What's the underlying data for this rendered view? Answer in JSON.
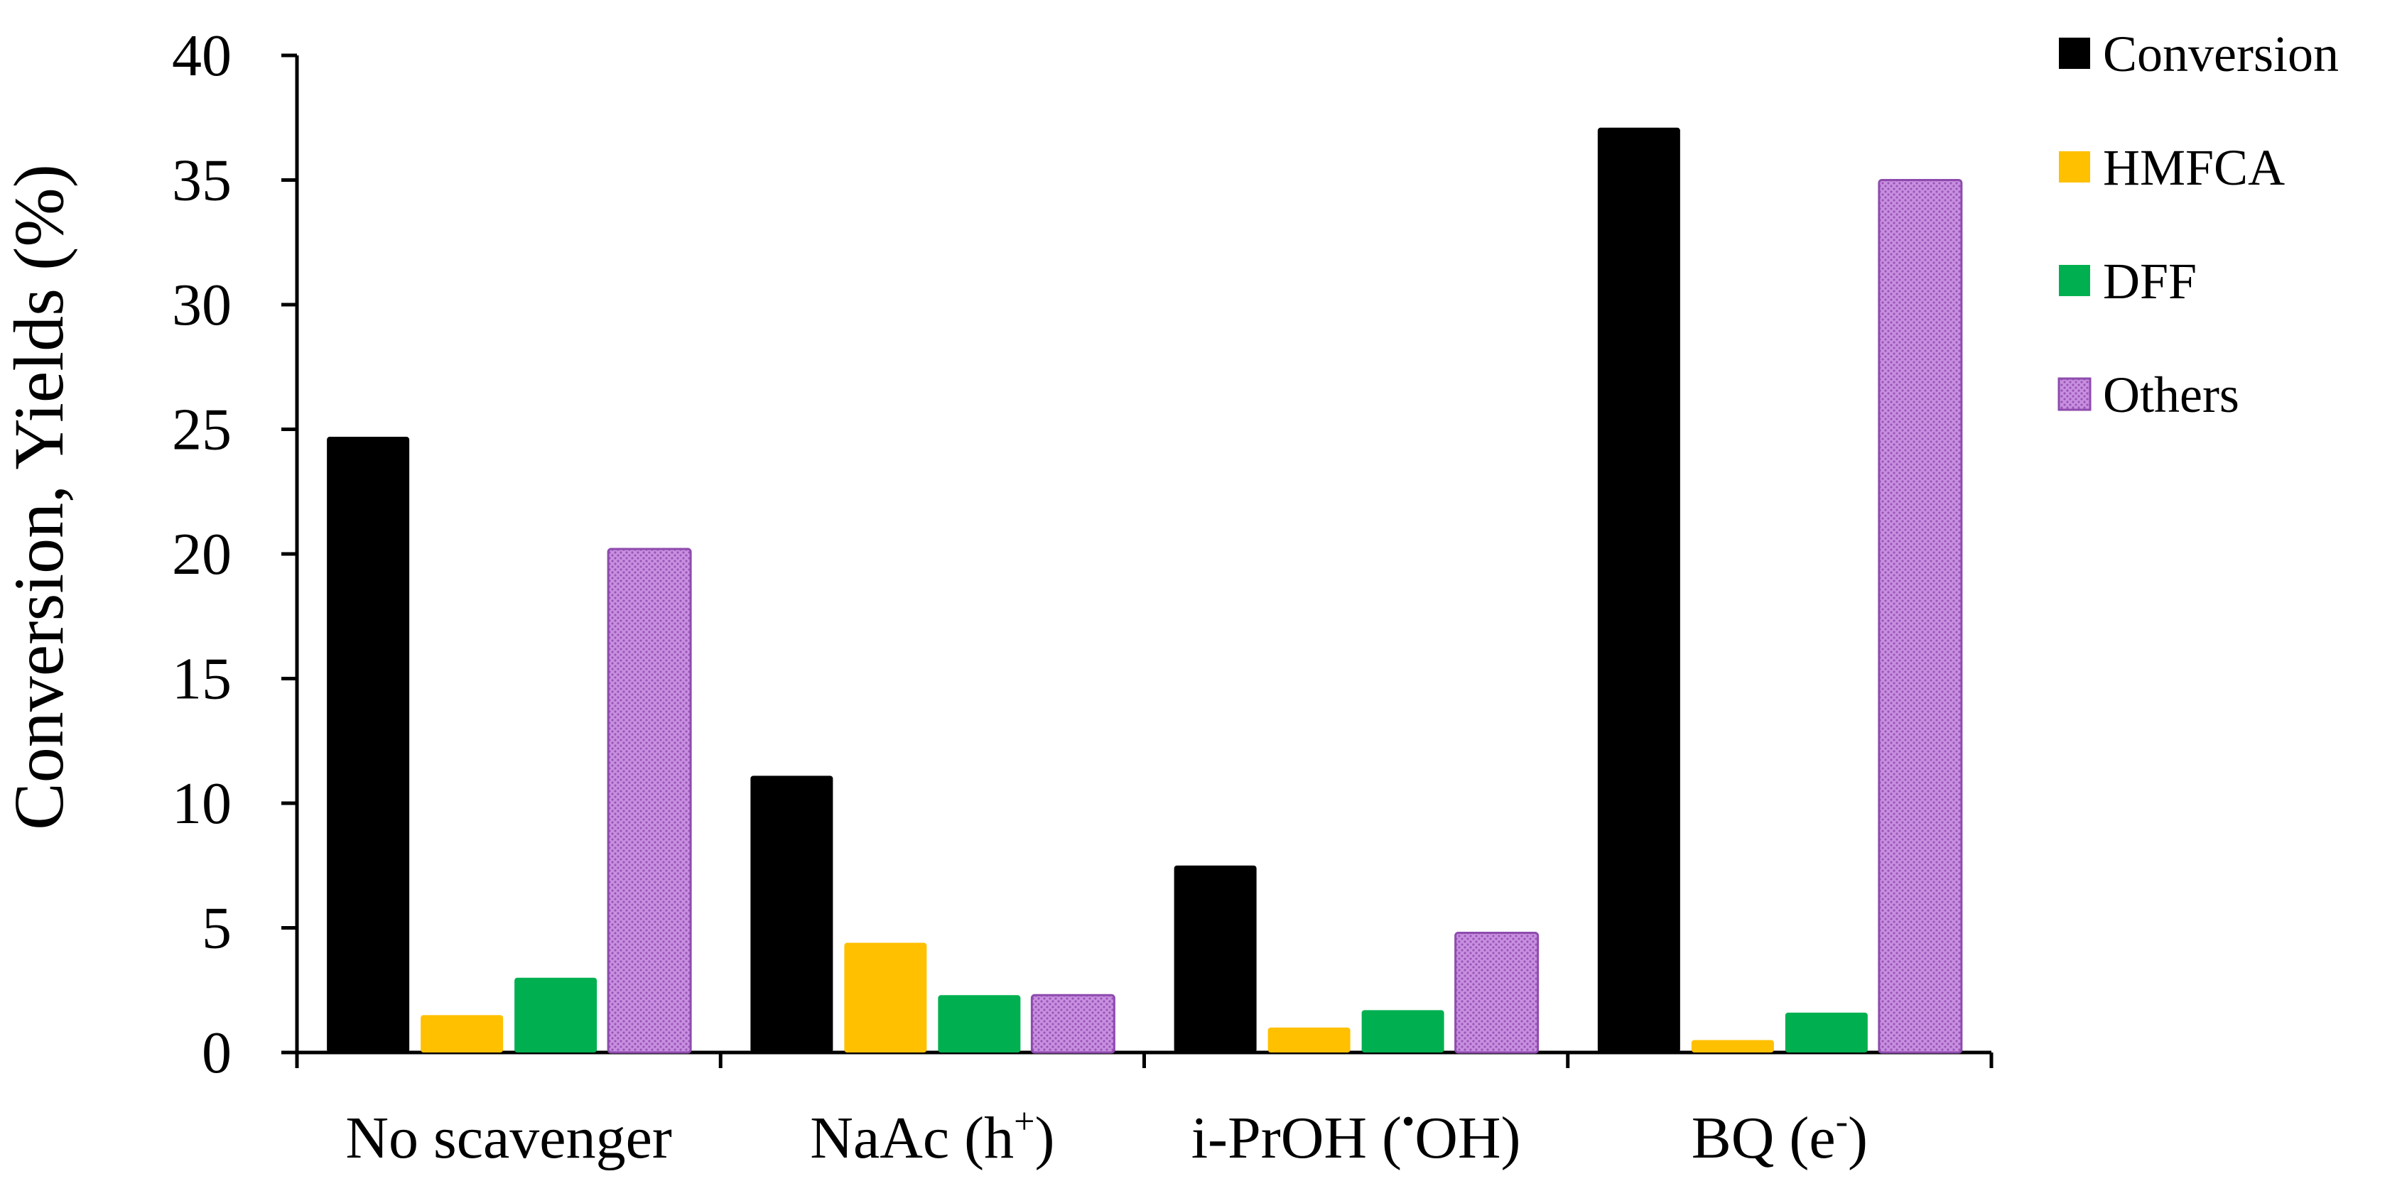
{
  "chart_data": {
    "type": "bar",
    "title": "",
    "xlabel": "",
    "ylabel": "Conversion, Yields (%)",
    "ylim": [
      0,
      40
    ],
    "yticks": [
      0,
      5,
      10,
      15,
      20,
      25,
      30,
      35,
      40
    ],
    "grid": false,
    "legend_position": "top-right",
    "categories": [
      {
        "label": "No scavenger",
        "sup": ""
      },
      {
        "label": "NaAc (h",
        "sup": "+",
        "suffix": ")"
      },
      {
        "label": "i-PrOH (",
        "sup": "•",
        "suffix": "OH)"
      },
      {
        "label": "BQ (e",
        "sup": "-",
        "suffix": ")"
      }
    ],
    "series": [
      {
        "name": "Conversion",
        "color": "#000000",
        "pattern": false,
        "values": [
          24.7,
          11.1,
          7.5,
          37.1
        ]
      },
      {
        "name": "HMFCA",
        "color": "#FFC000",
        "pattern": false,
        "values": [
          1.5,
          4.4,
          1.0,
          0.5
        ]
      },
      {
        "name": "DFF",
        "color": "#00B050",
        "pattern": false,
        "values": [
          3.0,
          2.3,
          1.7,
          1.6
        ]
      },
      {
        "name": "Others",
        "color": "#C890E0",
        "pattern": true,
        "values": [
          20.2,
          2.3,
          4.8,
          35.0
        ]
      }
    ]
  }
}
